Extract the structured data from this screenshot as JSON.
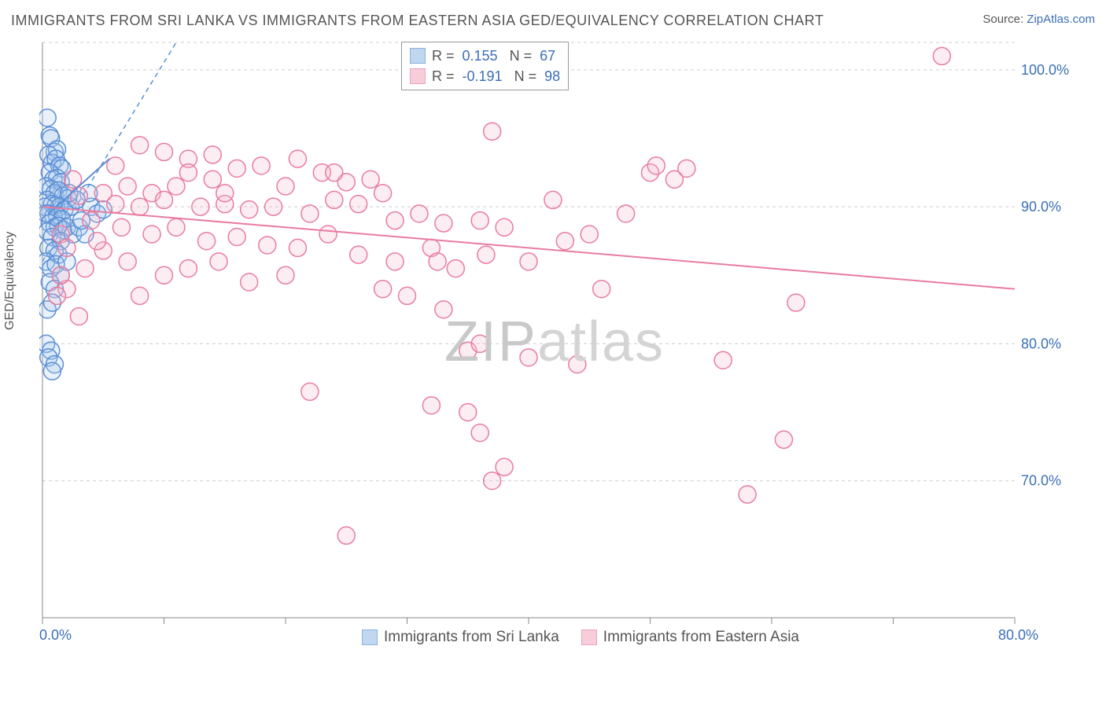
{
  "title": "IMMIGRANTS FROM SRI LANKA VS IMMIGRANTS FROM EASTERN ASIA GED/EQUIVALENCY CORRELATION CHART",
  "source_prefix": "Source: ",
  "source_link": "ZipAtlas.com",
  "y_axis_label": "GED/Equivalency",
  "watermark": "ZIPatlas",
  "chart": {
    "type": "scatter",
    "background_color": "#ffffff",
    "grid_color": "#cccccc",
    "grid_dash": "4,4",
    "axis_color": "#888888",
    "tick_color": "#888888",
    "label_color": "#3b6fb5",
    "text_color": "#555555",
    "xlim": [
      0,
      80
    ],
    "ylim": [
      60,
      102
    ],
    "y_ticks": [
      70,
      80,
      90,
      100
    ],
    "y_tick_labels": [
      "70.0%",
      "80.0%",
      "90.0%",
      "100.0%"
    ],
    "x_ticks": [
      0,
      10,
      20,
      30,
      40,
      50,
      60,
      70,
      80
    ],
    "x_tick_labels": [
      "0.0%",
      "",
      "",
      "",
      "",
      "",
      "",
      "",
      "80.0%"
    ],
    "marker_radius": 11,
    "marker_stroke_width": 1.5,
    "marker_fill_opacity": 0.25,
    "trendline_width": 2,
    "series": [
      {
        "name": "Immigrants from Sri Lanka",
        "color_stroke": "#5a8fd6",
        "color_fill": "#a8c7ea",
        "R": "0.155",
        "N": "67",
        "trendline": {
          "x1": 0.5,
          "y1": 89.5,
          "x2": 5.5,
          "y2": 93.5
        },
        "ideal_line": {
          "x1": 0,
          "y1": 86,
          "x2": 11,
          "y2": 102
        },
        "points": [
          [
            0.4,
            96.5
          ],
          [
            0.6,
            95.2
          ],
          [
            0.7,
            95.0
          ],
          [
            1.0,
            94.0
          ],
          [
            1.2,
            94.2
          ],
          [
            0.5,
            93.8
          ],
          [
            0.8,
            93.2
          ],
          [
            1.1,
            93.5
          ],
          [
            1.4,
            93.0
          ],
          [
            1.6,
            92.8
          ],
          [
            0.6,
            92.5
          ],
          [
            0.9,
            92.0
          ],
          [
            1.2,
            92.1
          ],
          [
            1.5,
            91.8
          ],
          [
            0.3,
            91.5
          ],
          [
            0.7,
            91.3
          ],
          [
            1.0,
            91.0
          ],
          [
            1.3,
            91.2
          ],
          [
            1.7,
            90.8
          ],
          [
            2.1,
            90.6
          ],
          [
            0.4,
            90.5
          ],
          [
            0.8,
            90.2
          ],
          [
            1.1,
            90.1
          ],
          [
            1.4,
            90.0
          ],
          [
            1.8,
            89.8
          ],
          [
            2.3,
            90.0
          ],
          [
            0.2,
            90.0
          ],
          [
            0.5,
            89.5
          ],
          [
            0.9,
            89.3
          ],
          [
            1.2,
            89.4
          ],
          [
            1.6,
            89.1
          ],
          [
            0.3,
            89.5
          ],
          [
            0.6,
            88.8
          ],
          [
            1.0,
            88.5
          ],
          [
            1.3,
            88.6
          ],
          [
            1.7,
            88.3
          ],
          [
            2.0,
            88.5
          ],
          [
            0.4,
            88.2
          ],
          [
            0.8,
            87.8
          ],
          [
            1.5,
            87.5
          ],
          [
            2.5,
            88.0
          ],
          [
            3.0,
            88.5
          ],
          [
            3.5,
            88.0
          ],
          [
            0.5,
            87.0
          ],
          [
            1.0,
            86.8
          ],
          [
            1.3,
            86.5
          ],
          [
            0.3,
            86.0
          ],
          [
            0.7,
            85.5
          ],
          [
            1.1,
            85.8
          ],
          [
            1.5,
            85.0
          ],
          [
            2.0,
            86.0
          ],
          [
            0.6,
            84.5
          ],
          [
            1.0,
            84.0
          ],
          [
            0.4,
            82.5
          ],
          [
            0.8,
            83.0
          ],
          [
            0.3,
            80.0
          ],
          [
            0.7,
            79.5
          ],
          [
            0.5,
            79.0
          ],
          [
            1.0,
            78.5
          ],
          [
            0.8,
            78.0
          ],
          [
            4.0,
            90.0
          ],
          [
            4.5,
            89.5
          ],
          [
            3.8,
            91.0
          ],
          [
            2.8,
            90.5
          ],
          [
            3.2,
            89.0
          ],
          [
            2.2,
            91.0
          ],
          [
            5.0,
            89.8
          ]
        ]
      },
      {
        "name": "Immigrants from Eastern Asia",
        "color_stroke": "#e87ca0",
        "color_fill": "#f5b8ca",
        "R": "-0.191",
        "N": "98",
        "trendline": {
          "x1": 0,
          "y1": 90.0,
          "x2": 80,
          "y2": 84.0
        },
        "points": [
          [
            74,
            101
          ],
          [
            37,
            95.5
          ],
          [
            50,
            92.5
          ],
          [
            50.5,
            93.0
          ],
          [
            53,
            92.8
          ],
          [
            8,
            94.5
          ],
          [
            10,
            94.0
          ],
          [
            12,
            93.5
          ],
          [
            14,
            93.8
          ],
          [
            16,
            92.8
          ],
          [
            18,
            93.0
          ],
          [
            21,
            93.5
          ],
          [
            23,
            92.5
          ],
          [
            25,
            91.8
          ],
          [
            27,
            92.0
          ],
          [
            14,
            92.0
          ],
          [
            11,
            91.5
          ],
          [
            9,
            91.0
          ],
          [
            7,
            91.5
          ],
          [
            5,
            91.0
          ],
          [
            3,
            90.8
          ],
          [
            6,
            90.2
          ],
          [
            8,
            90.0
          ],
          [
            10,
            90.5
          ],
          [
            13,
            90.0
          ],
          [
            15,
            90.2
          ],
          [
            17,
            89.8
          ],
          [
            19,
            90.0
          ],
          [
            22,
            89.5
          ],
          [
            24,
            90.5
          ],
          [
            26,
            90.2
          ],
          [
            29,
            89.0
          ],
          [
            31,
            89.5
          ],
          [
            33,
            88.8
          ],
          [
            36,
            89.0
          ],
          [
            38,
            88.5
          ],
          [
            42,
            90.5
          ],
          [
            4,
            89.0
          ],
          [
            6.5,
            88.5
          ],
          [
            9,
            88.0
          ],
          [
            11,
            88.5
          ],
          [
            13.5,
            87.5
          ],
          [
            16,
            87.8
          ],
          [
            18.5,
            87.2
          ],
          [
            21,
            87.0
          ],
          [
            23.5,
            88.0
          ],
          [
            26,
            86.5
          ],
          [
            29,
            86.0
          ],
          [
            32,
            87.0
          ],
          [
            32.5,
            86.0
          ],
          [
            34,
            85.5
          ],
          [
            36.5,
            86.5
          ],
          [
            40,
            86.0
          ],
          [
            43,
            87.5
          ],
          [
            5,
            86.8
          ],
          [
            7,
            86.0
          ],
          [
            10,
            85.0
          ],
          [
            12,
            85.5
          ],
          [
            14.5,
            86.0
          ],
          [
            17,
            84.5
          ],
          [
            20,
            85.0
          ],
          [
            8,
            83.5
          ],
          [
            28,
            84.0
          ],
          [
            30,
            83.5
          ],
          [
            33,
            82.5
          ],
          [
            35,
            79.5
          ],
          [
            36,
            80.0
          ],
          [
            22,
            76.5
          ],
          [
            32,
            75.5
          ],
          [
            35,
            75.0
          ],
          [
            36,
            73.5
          ],
          [
            38,
            71.0
          ],
          [
            37,
            70.0
          ],
          [
            25,
            66.0
          ],
          [
            45,
            88.0
          ],
          [
            40,
            79.0
          ],
          [
            44,
            78.5
          ],
          [
            46,
            84.0
          ],
          [
            48,
            89.5
          ],
          [
            56,
            78.8
          ],
          [
            58,
            69.0
          ],
          [
            62,
            83.0
          ],
          [
            61,
            73.0
          ],
          [
            2,
            84.0
          ],
          [
            3.5,
            85.5
          ],
          [
            4.5,
            87.5
          ],
          [
            1.5,
            88.0
          ],
          [
            2.5,
            92.0
          ],
          [
            52,
            92.0
          ],
          [
            15,
            91.0
          ],
          [
            28,
            91.0
          ],
          [
            24,
            92.5
          ],
          [
            20,
            91.5
          ],
          [
            6,
            93.0
          ],
          [
            12,
            92.5
          ],
          [
            1.2,
            83.5
          ],
          [
            3,
            82.0
          ],
          [
            1.5,
            85.0
          ],
          [
            2.0,
            87.0
          ]
        ]
      }
    ]
  },
  "legend_labels": {
    "R": "R",
    "N": "N",
    "eq": "="
  },
  "bottom_legend": [
    {
      "swatch": 0,
      "label": "Immigrants from Sri Lanka"
    },
    {
      "swatch": 1,
      "label": "Immigrants from Eastern Asia"
    }
  ]
}
